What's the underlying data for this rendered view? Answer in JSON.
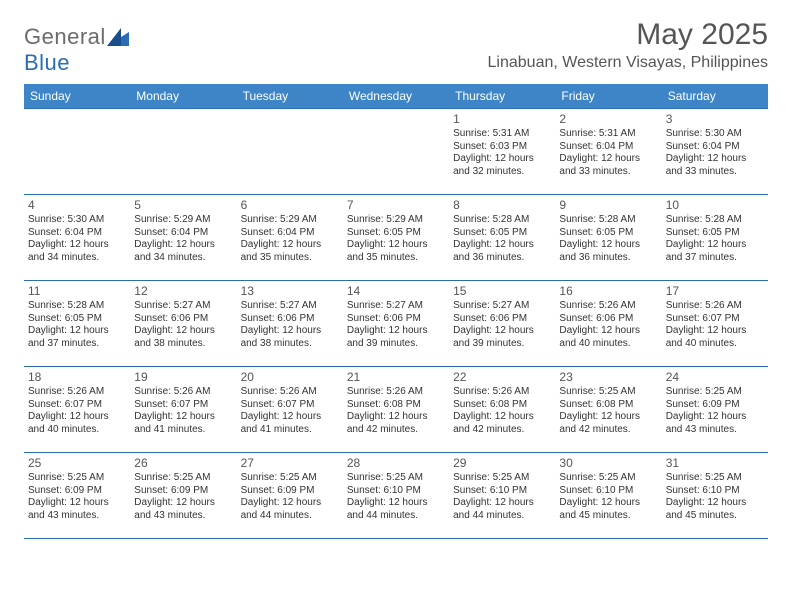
{
  "logo": {
    "word1": "General",
    "word2": "Blue"
  },
  "title": "May 2025",
  "location": "Linabuan, Western Visayas, Philippines",
  "colors": {
    "header_bg": "#3d85c6",
    "header_text": "#ffffff",
    "border": "#2a6db5",
    "shade_bg": "#eeeeee",
    "text": "#333333",
    "title_text": "#555555"
  },
  "day_headers": [
    "Sunday",
    "Monday",
    "Tuesday",
    "Wednesday",
    "Thursday",
    "Friday",
    "Saturday"
  ],
  "weeks": [
    [
      null,
      null,
      null,
      null,
      {
        "n": "1",
        "sr": "5:31 AM",
        "ss": "6:03 PM",
        "dl": "12 hours and 32 minutes."
      },
      {
        "n": "2",
        "sr": "5:31 AM",
        "ss": "6:04 PM",
        "dl": "12 hours and 33 minutes."
      },
      {
        "n": "3",
        "sr": "5:30 AM",
        "ss": "6:04 PM",
        "dl": "12 hours and 33 minutes."
      }
    ],
    [
      {
        "n": "4",
        "sr": "5:30 AM",
        "ss": "6:04 PM",
        "dl": "12 hours and 34 minutes."
      },
      {
        "n": "5",
        "sr": "5:29 AM",
        "ss": "6:04 PM",
        "dl": "12 hours and 34 minutes."
      },
      {
        "n": "6",
        "sr": "5:29 AM",
        "ss": "6:04 PM",
        "dl": "12 hours and 35 minutes."
      },
      {
        "n": "7",
        "sr": "5:29 AM",
        "ss": "6:05 PM",
        "dl": "12 hours and 35 minutes."
      },
      {
        "n": "8",
        "sr": "5:28 AM",
        "ss": "6:05 PM",
        "dl": "12 hours and 36 minutes."
      },
      {
        "n": "9",
        "sr": "5:28 AM",
        "ss": "6:05 PM",
        "dl": "12 hours and 36 minutes."
      },
      {
        "n": "10",
        "sr": "5:28 AM",
        "ss": "6:05 PM",
        "dl": "12 hours and 37 minutes."
      }
    ],
    [
      {
        "n": "11",
        "sr": "5:28 AM",
        "ss": "6:05 PM",
        "dl": "12 hours and 37 minutes."
      },
      {
        "n": "12",
        "sr": "5:27 AM",
        "ss": "6:06 PM",
        "dl": "12 hours and 38 minutes."
      },
      {
        "n": "13",
        "sr": "5:27 AM",
        "ss": "6:06 PM",
        "dl": "12 hours and 38 minutes."
      },
      {
        "n": "14",
        "sr": "5:27 AM",
        "ss": "6:06 PM",
        "dl": "12 hours and 39 minutes."
      },
      {
        "n": "15",
        "sr": "5:27 AM",
        "ss": "6:06 PM",
        "dl": "12 hours and 39 minutes."
      },
      {
        "n": "16",
        "sr": "5:26 AM",
        "ss": "6:06 PM",
        "dl": "12 hours and 40 minutes."
      },
      {
        "n": "17",
        "sr": "5:26 AM",
        "ss": "6:07 PM",
        "dl": "12 hours and 40 minutes."
      }
    ],
    [
      {
        "n": "18",
        "sr": "5:26 AM",
        "ss": "6:07 PM",
        "dl": "12 hours and 40 minutes."
      },
      {
        "n": "19",
        "sr": "5:26 AM",
        "ss": "6:07 PM",
        "dl": "12 hours and 41 minutes."
      },
      {
        "n": "20",
        "sr": "5:26 AM",
        "ss": "6:07 PM",
        "dl": "12 hours and 41 minutes."
      },
      {
        "n": "21",
        "sr": "5:26 AM",
        "ss": "6:08 PM",
        "dl": "12 hours and 42 minutes."
      },
      {
        "n": "22",
        "sr": "5:26 AM",
        "ss": "6:08 PM",
        "dl": "12 hours and 42 minutes."
      },
      {
        "n": "23",
        "sr": "5:25 AM",
        "ss": "6:08 PM",
        "dl": "12 hours and 42 minutes."
      },
      {
        "n": "24",
        "sr": "5:25 AM",
        "ss": "6:09 PM",
        "dl": "12 hours and 43 minutes."
      }
    ],
    [
      {
        "n": "25",
        "sr": "5:25 AM",
        "ss": "6:09 PM",
        "dl": "12 hours and 43 minutes."
      },
      {
        "n": "26",
        "sr": "5:25 AM",
        "ss": "6:09 PM",
        "dl": "12 hours and 43 minutes."
      },
      {
        "n": "27",
        "sr": "5:25 AM",
        "ss": "6:09 PM",
        "dl": "12 hours and 44 minutes."
      },
      {
        "n": "28",
        "sr": "5:25 AM",
        "ss": "6:10 PM",
        "dl": "12 hours and 44 minutes."
      },
      {
        "n": "29",
        "sr": "5:25 AM",
        "ss": "6:10 PM",
        "dl": "12 hours and 44 minutes."
      },
      {
        "n": "30",
        "sr": "5:25 AM",
        "ss": "6:10 PM",
        "dl": "12 hours and 45 minutes."
      },
      {
        "n": "31",
        "sr": "5:25 AM",
        "ss": "6:10 PM",
        "dl": "12 hours and 45 minutes."
      }
    ]
  ],
  "labels": {
    "sunrise": "Sunrise: ",
    "sunset": "Sunset: ",
    "daylight": "Daylight: "
  },
  "shaded_rows": [
    0,
    2,
    4
  ]
}
